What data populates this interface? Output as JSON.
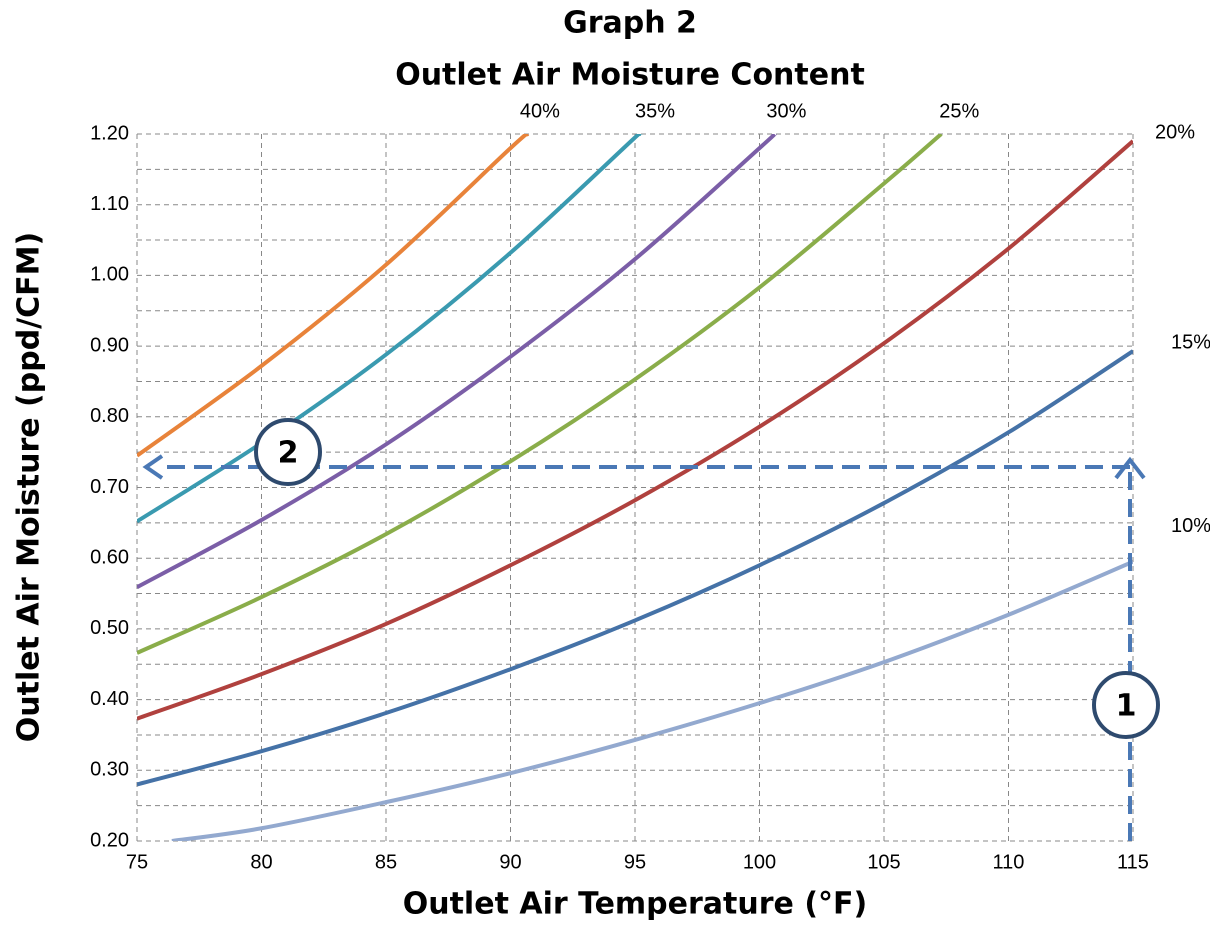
{
  "chart_data": {
    "type": "line",
    "title": "Graph 2",
    "subtitle": "Outlet Air Moisture Content",
    "x_label": "Outlet Air Temperature (°F)",
    "y_label": "Outlet Air Moisture (ppd/CFM)",
    "xlim": [
      75,
      115
    ],
    "xticks": [
      75,
      80,
      85,
      90,
      95,
      100,
      105,
      110,
      115
    ],
    "ylim": [
      0.2,
      1.2
    ],
    "yticks": [
      {
        "value": 0.2,
        "label": "0.20"
      },
      {
        "value": 0.3,
        "label": "0.30"
      },
      {
        "value": 0.4,
        "label": "0.40"
      },
      {
        "value": 0.5,
        "label": "0.50"
      },
      {
        "value": 0.6,
        "label": "0.60"
      },
      {
        "value": 0.7,
        "label": "0.70"
      },
      {
        "value": 0.8,
        "label": "0.80"
      },
      {
        "value": 0.9,
        "label": "0.90"
      },
      {
        "value": 1.0,
        "label": "1.00"
      },
      {
        "value": 1.1,
        "label": "1.10"
      },
      {
        "value": 1.2,
        "label": "1.20"
      }
    ],
    "yminorticks": [
      0.25,
      0.35,
      0.45,
      0.55,
      0.65,
      0.75,
      0.85,
      0.95,
      1.05,
      1.15
    ],
    "grid": true,
    "series": [
      {
        "name": "40%",
        "color": "#e8833a",
        "x": [
          75,
          80,
          85,
          90,
          90.7
        ],
        "values": [
          0.745,
          0.872,
          1.015,
          1.18,
          1.2
        ]
      },
      {
        "name": "35%",
        "color": "#3a9ab0",
        "x": [
          75,
          80,
          85,
          90,
          95,
          95.2
        ],
        "values": [
          0.652,
          0.763,
          0.888,
          1.032,
          1.195,
          1.2
        ]
      },
      {
        "name": "30%",
        "color": "#7b5ea7",
        "x": [
          75,
          80,
          85,
          90,
          95,
          100,
          100.6
        ],
        "values": [
          0.559,
          0.654,
          0.761,
          0.885,
          1.023,
          1.18,
          1.2
        ]
      },
      {
        "name": "25%",
        "color": "#8aad4a",
        "x": [
          75,
          80,
          85,
          90,
          95,
          100,
          105,
          107.3
        ],
        "values": [
          0.466,
          0.545,
          0.634,
          0.737,
          0.853,
          0.983,
          1.13,
          1.2
        ]
      },
      {
        "name": "20%",
        "color": "#b0413e",
        "x": [
          75,
          80,
          85,
          90,
          95,
          100,
          105,
          110,
          115
        ],
        "values": [
          0.373,
          0.436,
          0.507,
          0.59,
          0.682,
          0.786,
          0.904,
          1.038,
          1.19
        ]
      },
      {
        "name": "15%",
        "color": "#4572a7",
        "x": [
          75,
          80,
          85,
          90,
          95,
          100,
          105,
          110,
          115
        ],
        "values": [
          0.28,
          0.327,
          0.381,
          0.443,
          0.512,
          0.59,
          0.678,
          0.778,
          0.893
        ]
      },
      {
        "name": "10%",
        "color": "#93a9cf",
        "x": [
          76.4,
          80,
          85,
          90,
          95,
          100,
          105,
          110,
          115
        ],
        "values": [
          0.2,
          0.218,
          0.255,
          0.296,
          0.343,
          0.395,
          0.453,
          0.52,
          0.595
        ]
      }
    ],
    "annotations": [
      {
        "label": "1"
      },
      {
        "label": "2"
      }
    ]
  }
}
